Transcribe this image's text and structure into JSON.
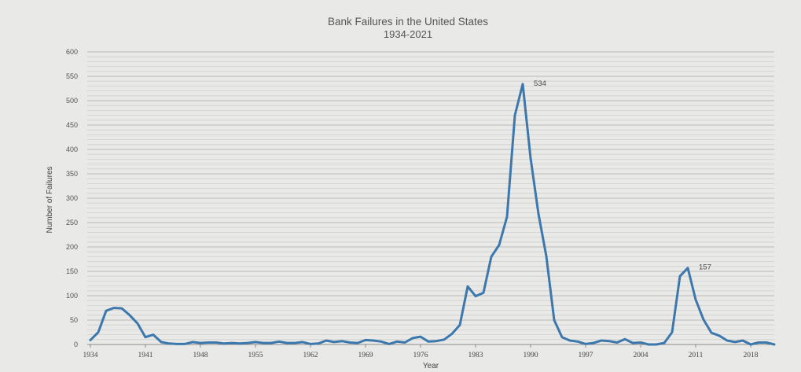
{
  "chart_data": {
    "type": "line",
    "title": "Bank Failures in the United States",
    "subtitle": "1934-2021",
    "xlabel": "Year",
    "ylabel": "Number of Failures",
    "ylim": [
      0,
      600
    ],
    "xlim": [
      1934,
      2021
    ],
    "grid": true,
    "legend": "none",
    "yticks": [
      0,
      50,
      100,
      150,
      200,
      250,
      300,
      350,
      400,
      450,
      500,
      550,
      600
    ],
    "xticks": [
      1934,
      1941,
      1948,
      1955,
      1962,
      1969,
      1976,
      1983,
      1990,
      1997,
      2004,
      2011,
      2018
    ],
    "annotations": [
      {
        "x": 1989,
        "y": 534,
        "text": "534"
      },
      {
        "x": 2010,
        "y": 157,
        "text": "157"
      }
    ],
    "line_color": "#3d78ad",
    "series": [
      {
        "x": [
          1934,
          1935,
          1936,
          1937,
          1938,
          1939,
          1940,
          1941,
          1942,
          1943,
          1944,
          1945,
          1946,
          1947,
          1948,
          1949,
          1950,
          1951,
          1952,
          1953,
          1954,
          1955,
          1956,
          1957,
          1958,
          1959,
          1960,
          1961,
          1962,
          1963,
          1964,
          1965,
          1966,
          1967,
          1968,
          1969,
          1970,
          1971,
          1972,
          1973,
          1974,
          1975,
          1976,
          1977,
          1978,
          1979,
          1980,
          1981,
          1982,
          1983,
          1984,
          1985,
          1986,
          1987,
          1988,
          1989,
          1990,
          1991,
          1992,
          1993,
          1994,
          1995,
          1996,
          1997,
          1998,
          1999,
          2000,
          2001,
          2002,
          2003,
          2004,
          2005,
          2006,
          2007,
          2008,
          2009,
          2010,
          2011,
          2012,
          2013,
          2014,
          2015,
          2016,
          2017,
          2018,
          2019,
          2020,
          2021
        ],
        "values": [
          9,
          25,
          69,
          75,
          74,
          60,
          43,
          15,
          20,
          5,
          2,
          1,
          1,
          5,
          3,
          4,
          4,
          2,
          3,
          2,
          3,
          5,
          3,
          3,
          6,
          3,
          3,
          5,
          1,
          2,
          8,
          5,
          7,
          4,
          3,
          9,
          8,
          6,
          1,
          6,
          4,
          13,
          16,
          6,
          7,
          10,
          22,
          40,
          119,
          99,
          106,
          180,
          204,
          262,
          470,
          534,
          382,
          268,
          181,
          50,
          15,
          8,
          6,
          1,
          3,
          8,
          7,
          4,
          11,
          3,
          4,
          0,
          0,
          3,
          25,
          140,
          157,
          92,
          51,
          24,
          18,
          8,
          5,
          8,
          0,
          4,
          4,
          0
        ]
      }
    ]
  }
}
